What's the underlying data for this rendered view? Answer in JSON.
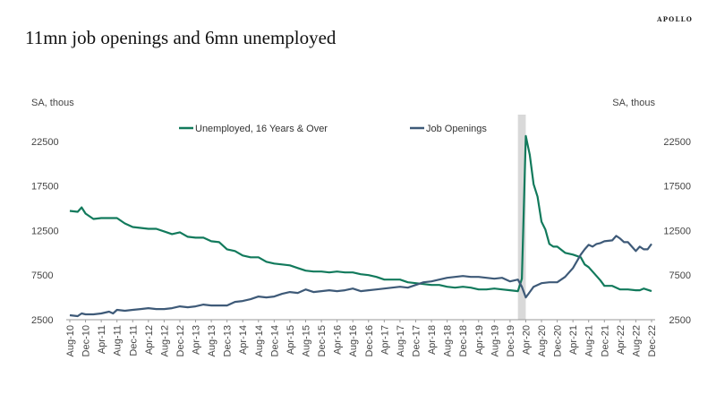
{
  "header": {
    "brand": "APOLLO",
    "title": "11mn job openings and 6mn unemployed"
  },
  "chart_data": {
    "type": "line",
    "title": "11mn job openings and 6mn unemployed",
    "ylabel_left": "SA, thous",
    "ylabel_right": "SA, thous",
    "ylim": [
      2500,
      25000
    ],
    "yticks": [
      2500,
      7500,
      12500,
      17500,
      22500
    ],
    "yticks_labels": [
      "2500",
      "7500",
      "12500",
      "17500",
      "22500"
    ],
    "x_tick_labels": [
      "Aug-10",
      "Dec-10",
      "Apr-11",
      "Aug-11",
      "Dec-11",
      "Apr-12",
      "Aug-12",
      "Dec-12",
      "Apr-13",
      "Aug-13",
      "Dec-13",
      "Apr-14",
      "Aug-14",
      "Dec-14",
      "Apr-15",
      "Aug-15",
      "Dec-15",
      "Apr-16",
      "Aug-16",
      "Dec-16",
      "Apr-17",
      "Aug-17",
      "Dec-17",
      "Apr-18",
      "Aug-18",
      "Dec-18",
      "Apr-19",
      "Aug-19",
      "Dec-19",
      "Apr-20",
      "Aug-20",
      "Dec-20",
      "Apr-21",
      "Aug-21",
      "Dec-21",
      "Apr-22",
      "Aug-22",
      "Dec-22"
    ],
    "recession_shade": {
      "from": "Feb-20",
      "to": "Apr-20",
      "color": "#d9d9d9"
    },
    "legend_placement": "top",
    "series": [
      {
        "name": "Unemployed, 16 Years & Over",
        "color": "#127a5c",
        "points": [
          [
            "Aug-10",
            14700
          ],
          [
            "Oct-10",
            14600
          ],
          [
            "Nov-10",
            15100
          ],
          [
            "Dec-10",
            14400
          ],
          [
            "Feb-11",
            13800
          ],
          [
            "Apr-11",
            13900
          ],
          [
            "Jun-11",
            13900
          ],
          [
            "Aug-11",
            13900
          ],
          [
            "Oct-11",
            13300
          ],
          [
            "Dec-11",
            12900
          ],
          [
            "Feb-12",
            12800
          ],
          [
            "Apr-12",
            12700
          ],
          [
            "Jun-12",
            12700
          ],
          [
            "Aug-12",
            12400
          ],
          [
            "Oct-12",
            12100
          ],
          [
            "Dec-12",
            12300
          ],
          [
            "Feb-13",
            11800
          ],
          [
            "Apr-13",
            11700
          ],
          [
            "Jun-13",
            11700
          ],
          [
            "Aug-13",
            11300
          ],
          [
            "Oct-13",
            11200
          ],
          [
            "Dec-13",
            10400
          ],
          [
            "Feb-14",
            10200
          ],
          [
            "Apr-14",
            9700
          ],
          [
            "Jun-14",
            9500
          ],
          [
            "Aug-14",
            9500
          ],
          [
            "Oct-14",
            9000
          ],
          [
            "Dec-14",
            8800
          ],
          [
            "Feb-15",
            8700
          ],
          [
            "Apr-15",
            8600
          ],
          [
            "Jun-15",
            8300
          ],
          [
            "Aug-15",
            8000
          ],
          [
            "Oct-15",
            7900
          ],
          [
            "Dec-15",
            7900
          ],
          [
            "Feb-16",
            7800
          ],
          [
            "Apr-16",
            7900
          ],
          [
            "Jun-16",
            7800
          ],
          [
            "Aug-16",
            7800
          ],
          [
            "Oct-16",
            7600
          ],
          [
            "Dec-16",
            7500
          ],
          [
            "Feb-17",
            7300
          ],
          [
            "Apr-17",
            7000
          ],
          [
            "Jun-17",
            7000
          ],
          [
            "Aug-17",
            7000
          ],
          [
            "Oct-17",
            6700
          ],
          [
            "Dec-17",
            6600
          ],
          [
            "Feb-18",
            6500
          ],
          [
            "Apr-18",
            6400
          ],
          [
            "Jun-18",
            6400
          ],
          [
            "Aug-18",
            6200
          ],
          [
            "Oct-18",
            6100
          ],
          [
            "Dec-18",
            6200
          ],
          [
            "Feb-19",
            6100
          ],
          [
            "Apr-19",
            5900
          ],
          [
            "Jun-19",
            5900
          ],
          [
            "Aug-19",
            6000
          ],
          [
            "Oct-19",
            5900
          ],
          [
            "Dec-19",
            5800
          ],
          [
            "Feb-20",
            5700
          ],
          [
            "Mar-20",
            7100
          ],
          [
            "Apr-20",
            23100
          ],
          [
            "May-20",
            21000
          ],
          [
            "Jun-20",
            17700
          ],
          [
            "Jul-20",
            16300
          ],
          [
            "Aug-20",
            13500
          ],
          [
            "Sep-20",
            12600
          ],
          [
            "Oct-20",
            11000
          ],
          [
            "Nov-20",
            10700
          ],
          [
            "Dec-20",
            10700
          ],
          [
            "Feb-21",
            10000
          ],
          [
            "Apr-21",
            9800
          ],
          [
            "Jun-21",
            9500
          ],
          [
            "Jul-21",
            8700
          ],
          [
            "Aug-21",
            8400
          ],
          [
            "Oct-21",
            7400
          ],
          [
            "Nov-21",
            6900
          ],
          [
            "Dec-21",
            6300
          ],
          [
            "Feb-22",
            6300
          ],
          [
            "Apr-22",
            5900
          ],
          [
            "Jun-22",
            5900
          ],
          [
            "Aug-22",
            5800
          ],
          [
            "Sep-22",
            5800
          ],
          [
            "Oct-22",
            6000
          ],
          [
            "Dec-22",
            5700
          ]
        ]
      },
      {
        "name": "Job Openings",
        "color": "#3e5a78",
        "points": [
          [
            "Aug-10",
            3000
          ],
          [
            "Oct-10",
            2900
          ],
          [
            "Nov-10",
            3200
          ],
          [
            "Dec-10",
            3100
          ],
          [
            "Feb-11",
            3100
          ],
          [
            "Apr-11",
            3200
          ],
          [
            "Jun-11",
            3400
          ],
          [
            "Jul-11",
            3200
          ],
          [
            "Aug-11",
            3600
          ],
          [
            "Oct-11",
            3500
          ],
          [
            "Dec-11",
            3600
          ],
          [
            "Feb-12",
            3700
          ],
          [
            "Apr-12",
            3800
          ],
          [
            "Jun-12",
            3700
          ],
          [
            "Aug-12",
            3700
          ],
          [
            "Oct-12",
            3800
          ],
          [
            "Dec-12",
            4000
          ],
          [
            "Feb-13",
            3900
          ],
          [
            "Apr-13",
            4000
          ],
          [
            "Jun-13",
            4200
          ],
          [
            "Aug-13",
            4100
          ],
          [
            "Oct-13",
            4100
          ],
          [
            "Dec-13",
            4100
          ],
          [
            "Feb-14",
            4500
          ],
          [
            "Apr-14",
            4600
          ],
          [
            "Jun-14",
            4800
          ],
          [
            "Aug-14",
            5100
          ],
          [
            "Oct-14",
            5000
          ],
          [
            "Dec-14",
            5100
          ],
          [
            "Feb-15",
            5400
          ],
          [
            "Apr-15",
            5600
          ],
          [
            "Jun-15",
            5500
          ],
          [
            "Aug-15",
            5900
          ],
          [
            "Oct-15",
            5600
          ],
          [
            "Dec-15",
            5700
          ],
          [
            "Feb-16",
            5800
          ],
          [
            "Apr-16",
            5700
          ],
          [
            "Jun-16",
            5800
          ],
          [
            "Aug-16",
            6000
          ],
          [
            "Oct-16",
            5700
          ],
          [
            "Dec-16",
            5800
          ],
          [
            "Feb-17",
            5900
          ],
          [
            "Apr-17",
            6000
          ],
          [
            "Jun-17",
            6100
          ],
          [
            "Aug-17",
            6200
          ],
          [
            "Oct-17",
            6100
          ],
          [
            "Dec-17",
            6400
          ],
          [
            "Feb-18",
            6700
          ],
          [
            "Apr-18",
            6800
          ],
          [
            "Jun-18",
            7000
          ],
          [
            "Aug-18",
            7200
          ],
          [
            "Oct-18",
            7300
          ],
          [
            "Dec-18",
            7400
          ],
          [
            "Feb-19",
            7300
          ],
          [
            "Apr-19",
            7300
          ],
          [
            "Jun-19",
            7200
          ],
          [
            "Aug-19",
            7100
          ],
          [
            "Oct-19",
            7200
          ],
          [
            "Dec-19",
            6800
          ],
          [
            "Feb-20",
            7000
          ],
          [
            "Mar-20",
            6200
          ],
          [
            "Apr-20",
            5000
          ],
          [
            "May-20",
            5600
          ],
          [
            "Jun-20",
            6200
          ],
          [
            "Aug-20",
            6600
          ],
          [
            "Oct-20",
            6700
          ],
          [
            "Dec-20",
            6700
          ],
          [
            "Feb-21",
            7300
          ],
          [
            "Apr-21",
            8300
          ],
          [
            "Jun-21",
            9800
          ],
          [
            "Jul-21",
            10400
          ],
          [
            "Aug-21",
            10900
          ],
          [
            "Sep-21",
            10700
          ],
          [
            "Oct-21",
            11000
          ],
          [
            "Nov-21",
            11100
          ],
          [
            "Dec-21",
            11300
          ],
          [
            "Feb-22",
            11400
          ],
          [
            "Mar-22",
            11900
          ],
          [
            "Apr-22",
            11600
          ],
          [
            "May-22",
            11200
          ],
          [
            "Jun-22",
            11200
          ],
          [
            "Jul-22",
            10700
          ],
          [
            "Aug-22",
            10200
          ],
          [
            "Sep-22",
            10700
          ],
          [
            "Oct-22",
            10400
          ],
          [
            "Nov-22",
            10400
          ],
          [
            "Dec-22",
            11000
          ]
        ]
      }
    ]
  }
}
